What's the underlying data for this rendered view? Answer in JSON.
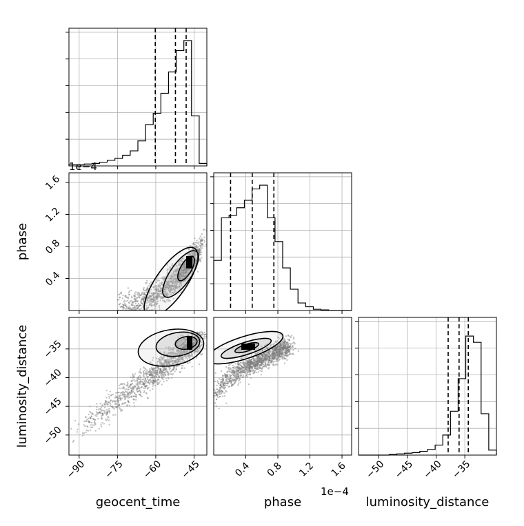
{
  "chart_data": {
    "type": "corner",
    "parameters": [
      "geocent_time",
      "phase",
      "luminosity_distance"
    ],
    "multipliers": {
      "phase_axis": "1e−4"
    },
    "ranges": {
      "geocent_time": [
        -94,
        -40
      ],
      "phase": [
        0.0,
        1.72
      ],
      "luminosity_distance": [
        -53.5,
        -29.5
      ]
    },
    "ticks": {
      "geocent_time": [
        -90,
        -75,
        -60,
        -45
      ],
      "phase": [
        0.4,
        0.8,
        1.2,
        1.6
      ],
      "luminosity_distance": [
        -50,
        -45,
        -40,
        -35
      ]
    },
    "tick_labels": {
      "geocent_time": [
        "−90",
        "−75",
        "−60",
        "−45"
      ],
      "phase": [
        "0.4",
        "0.8",
        "1.2",
        "1.6"
      ],
      "luminosity_distance": [
        "−50",
        "−45",
        "−40",
        "−35"
      ]
    },
    "quantiles": {
      "geocent_time": [
        -60.2,
        -52.3,
        -48.1
      ],
      "phase": [
        0.21,
        0.48,
        0.75
      ],
      "luminosity_distance": [
        -37.9,
        -36.0,
        -34.4
      ]
    },
    "histograms": {
      "geocent_time": [
        0.01,
        0.01,
        0.015,
        0.02,
        0.03,
        0.045,
        0.06,
        0.085,
        0.12,
        0.2,
        0.33,
        0.42,
        0.58,
        0.75,
        0.92,
        1.0,
        0.4,
        0.02
      ],
      "phase": [
        0.4,
        0.74,
        0.76,
        0.82,
        0.88,
        0.97,
        1.0,
        0.74,
        0.55,
        0.34,
        0.17,
        0.06,
        0.03,
        0.01,
        0.005,
        0.0,
        0.0,
        0.0
      ],
      "luminosity_distance": [
        0.0,
        0.0,
        0.0,
        0.0,
        0.005,
        0.01,
        0.015,
        0.02,
        0.03,
        0.045,
        0.08,
        0.16,
        0.35,
        0.61,
        0.95,
        0.9,
        0.33,
        0.04
      ]
    },
    "grid": true
  }
}
